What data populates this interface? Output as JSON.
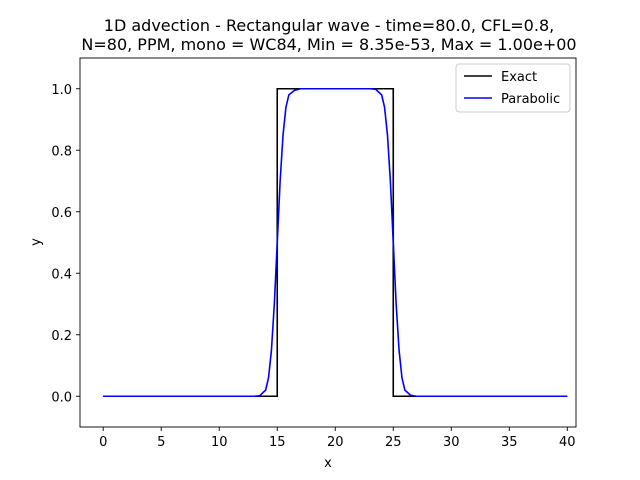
{
  "chart_data": {
    "type": "line",
    "title_lines": [
      "1D advection - Rectangular wave - time=80.0, CFL=0.8,",
      "N=80, PPM, mono = WC84, Min = 8.35e-53, Max = 1.00e+00"
    ],
    "xlabel": "x",
    "ylabel": "y",
    "xlim": [
      -2,
      40.75
    ],
    "ylim": [
      -0.1,
      1.1
    ],
    "xticks": [
      0,
      5,
      10,
      15,
      20,
      25,
      30,
      35,
      40
    ],
    "yticks": [
      0.0,
      0.2,
      0.4,
      0.6,
      0.8,
      1.0
    ],
    "ytick_labels": [
      "0.0",
      "0.2",
      "0.4",
      "0.6",
      "0.8",
      "1.0"
    ],
    "legend_position": "top-right",
    "grid": false,
    "series": [
      {
        "name": "Exact",
        "color": "#000000",
        "x": [
          0,
          15,
          15,
          25,
          25,
          40
        ],
        "y": [
          0,
          0,
          1,
          1,
          0,
          0
        ]
      },
      {
        "name": "Parabolic",
        "color": "#0000ff",
        "x": [
          0,
          13,
          13.5,
          14,
          14.25,
          14.5,
          14.75,
          15,
          15.25,
          15.5,
          15.75,
          16,
          16.5,
          17,
          20,
          23,
          23.5,
          24,
          24.25,
          24.5,
          24.75,
          25,
          25.25,
          25.5,
          25.75,
          26,
          26.5,
          27,
          40
        ],
        "y": [
          0,
          0,
          0.002,
          0.02,
          0.06,
          0.15,
          0.3,
          0.5,
          0.7,
          0.85,
          0.94,
          0.98,
          0.995,
          1.0,
          1.0,
          1.0,
          0.998,
          0.98,
          0.94,
          0.85,
          0.7,
          0.5,
          0.3,
          0.15,
          0.06,
          0.02,
          0.003,
          0.0,
          0.0
        ]
      }
    ]
  }
}
